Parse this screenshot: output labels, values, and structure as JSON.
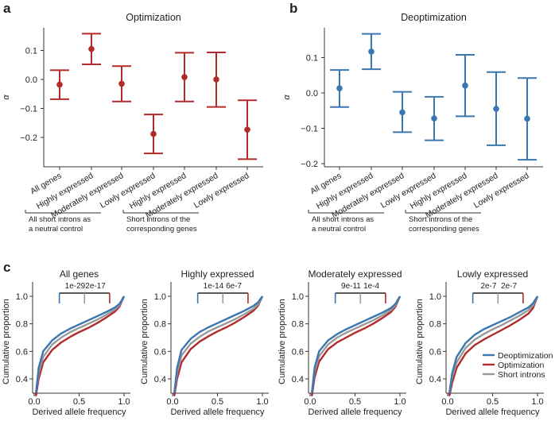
{
  "panel_labels": {
    "a": "a",
    "b": "b",
    "c": "c"
  },
  "group_labels": {
    "control": [
      "All short introns as",
      "a neutral control"
    ],
    "corresponding": [
      "Short introns of the",
      "corresponding genes"
    ]
  },
  "colors": {
    "optimization": "#b22a2a",
    "deoptimization": "#3a76b0",
    "short_introns": "#999999",
    "bracket": "#222222"
  },
  "chart_data": [
    {
      "type": "scatter",
      "panel": "a",
      "title": "Optimization",
      "ylabel": "α",
      "ylim": [
        -0.3,
        0.17
      ],
      "yticks": [
        0.1,
        0.0,
        -0.1,
        -0.2
      ],
      "ytick_labels": [
        "0.1",
        "0.0",
        "−0.1",
        "−0.2"
      ],
      "categories": [
        "All genes",
        "Highly expressed",
        "Moderately expressed",
        "Lowly expressed",
        "Highly expressed",
        "Moderately expressed",
        "Lowly expressed"
      ],
      "values": [
        -0.018,
        0.105,
        -0.015,
        -0.188,
        0.008,
        0.0,
        -0.173
      ],
      "ci_low": [
        -0.068,
        0.052,
        -0.076,
        -0.255,
        -0.076,
        -0.095,
        -0.275
      ],
      "ci_high": [
        0.032,
        0.158,
        0.046,
        -0.121,
        0.092,
        0.093,
        -0.072
      ]
    },
    {
      "type": "scatter",
      "panel": "b",
      "title": "Deoptimization",
      "ylabel": "α",
      "ylim": [
        -0.21,
        0.19
      ],
      "yticks": [
        0.1,
        0.0,
        -0.1,
        -0.2
      ],
      "ytick_labels": [
        "0.1",
        "0.0",
        "−0.1",
        "−0.2"
      ],
      "categories": [
        "All genes",
        "Highly expressed",
        "Moderately expressed",
        "Lowly expressed",
        "Highly expressed",
        "Moderately expressed",
        "Lowly expressed"
      ],
      "values": [
        0.013,
        0.117,
        -0.055,
        -0.072,
        0.021,
        -0.045,
        -0.073
      ],
      "ci_low": [
        -0.04,
        0.067,
        -0.111,
        -0.134,
        -0.066,
        -0.148,
        -0.189
      ],
      "ci_high": [
        0.065,
        0.167,
        0.003,
        -0.011,
        0.108,
        0.059,
        0.042
      ]
    },
    {
      "type": "line",
      "panel": "c",
      "xlabel": "Derived allele frequency",
      "ylabel": "Cumulative proportion",
      "xlim": [
        0,
        1
      ],
      "ylim": [
        0.3,
        1.05
      ],
      "xticks": [
        "0.0",
        "0.5",
        "1.0"
      ],
      "yticks": [
        "0.4",
        "0.6",
        "0.8",
        "1.0"
      ],
      "legend": [
        "Deoptimization",
        "Optimization",
        "Short introns"
      ],
      "legend_position": "lower-right (last subplot)",
      "x": [
        0.02,
        0.05,
        0.1,
        0.2,
        0.3,
        0.4,
        0.5,
        0.6,
        0.7,
        0.8,
        0.9,
        0.95,
        1.0
      ],
      "subplots": [
        {
          "title": "All genes",
          "p_left": "1e-29",
          "p_right": "2e-17",
          "series": {
            "Deoptimization": [
              0.3,
              0.48,
              0.6,
              0.68,
              0.73,
              0.765,
              0.795,
              0.825,
              0.855,
              0.885,
              0.92,
              0.945,
              1.0
            ],
            "Short introns": [
              0.3,
              0.44,
              0.56,
              0.65,
              0.7,
              0.74,
              0.77,
              0.8,
              0.83,
              0.865,
              0.905,
              0.935,
              1.0
            ],
            "Optimization": [
              0.28,
              0.4,
              0.52,
              0.61,
              0.665,
              0.705,
              0.74,
              0.77,
              0.805,
              0.845,
              0.89,
              0.925,
              1.0
            ]
          }
        },
        {
          "title": "Highly expressed",
          "p_left": "1e-14",
          "p_right": "6e-7",
          "series": {
            "Deoptimization": [
              0.3,
              0.48,
              0.61,
              0.69,
              0.74,
              0.775,
              0.805,
              0.835,
              0.865,
              0.895,
              0.93,
              0.955,
              1.0
            ],
            "Short introns": [
              0.3,
              0.44,
              0.57,
              0.655,
              0.705,
              0.745,
              0.775,
              0.805,
              0.835,
              0.87,
              0.91,
              0.94,
              1.0
            ],
            "Optimization": [
              0.28,
              0.4,
              0.52,
              0.615,
              0.67,
              0.71,
              0.745,
              0.775,
              0.81,
              0.85,
              0.895,
              0.93,
              1.0
            ]
          }
        },
        {
          "title": "Moderately expressed",
          "p_left": "9e-11",
          "p_right": "1e-4",
          "series": {
            "Deoptimization": [
              0.3,
              0.48,
              0.6,
              0.68,
              0.725,
              0.76,
              0.79,
              0.82,
              0.85,
              0.88,
              0.915,
              0.945,
              1.0
            ],
            "Short introns": [
              0.3,
              0.45,
              0.565,
              0.65,
              0.7,
              0.735,
              0.765,
              0.795,
              0.825,
              0.86,
              0.9,
              0.935,
              1.0
            ],
            "Optimization": [
              0.28,
              0.41,
              0.525,
              0.615,
              0.665,
              0.7,
              0.735,
              0.765,
              0.8,
              0.84,
              0.885,
              0.925,
              1.0
            ]
          }
        },
        {
          "title": "Lowly expressed",
          "p_left": "2e-7",
          "p_right": "2e-7",
          "series": {
            "Deoptimization": [
              0.3,
              0.44,
              0.56,
              0.66,
              0.72,
              0.76,
              0.79,
              0.82,
              0.85,
              0.885,
              0.92,
              0.95,
              1.0
            ],
            "Short introns": [
              0.3,
              0.41,
              0.52,
              0.625,
              0.685,
              0.725,
              0.76,
              0.79,
              0.825,
              0.86,
              0.9,
              0.935,
              1.0
            ],
            "Optimization": [
              0.28,
              0.37,
              0.48,
              0.585,
              0.645,
              0.685,
              0.72,
              0.755,
              0.79,
              0.83,
              0.875,
              0.915,
              1.0
            ]
          }
        }
      ]
    }
  ]
}
